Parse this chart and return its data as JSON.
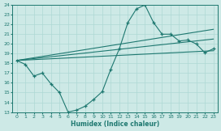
{
  "xlabel": "Humidex (Indice chaleur)",
  "xlim": [
    -0.5,
    23.5
  ],
  "ylim": [
    13,
    24
  ],
  "yticks": [
    13,
    14,
    15,
    16,
    17,
    18,
    19,
    20,
    21,
    22,
    23,
    24
  ],
  "xticks": [
    0,
    1,
    2,
    3,
    4,
    5,
    6,
    7,
    8,
    9,
    10,
    11,
    12,
    13,
    14,
    15,
    16,
    17,
    18,
    19,
    20,
    21,
    22,
    23
  ],
  "bg_color": "#cde9e6",
  "line_color": "#1e7870",
  "grid_color": "#aed8d4",
  "line1_x": [
    0,
    1,
    2,
    3,
    4,
    5,
    6,
    7,
    8,
    9,
    10,
    11,
    12,
    13,
    14,
    15,
    16,
    17,
    18,
    19,
    20,
    21,
    22,
    23
  ],
  "line1_y": [
    18.3,
    17.9,
    16.7,
    17.0,
    15.9,
    15.0,
    13.0,
    13.2,
    13.6,
    14.3,
    15.1,
    17.4,
    19.5,
    22.2,
    23.6,
    24.0,
    22.2,
    21.0,
    21.0,
    20.3,
    20.4,
    20.0,
    19.1,
    19.5
  ],
  "line2_x": [
    0,
    23
  ],
  "line2_y": [
    18.3,
    20.5
  ],
  "line3_x": [
    0,
    23
  ],
  "line3_y": [
    18.3,
    19.3
  ],
  "line4_x": [
    0,
    23
  ],
  "line4_y": [
    18.3,
    21.5
  ]
}
